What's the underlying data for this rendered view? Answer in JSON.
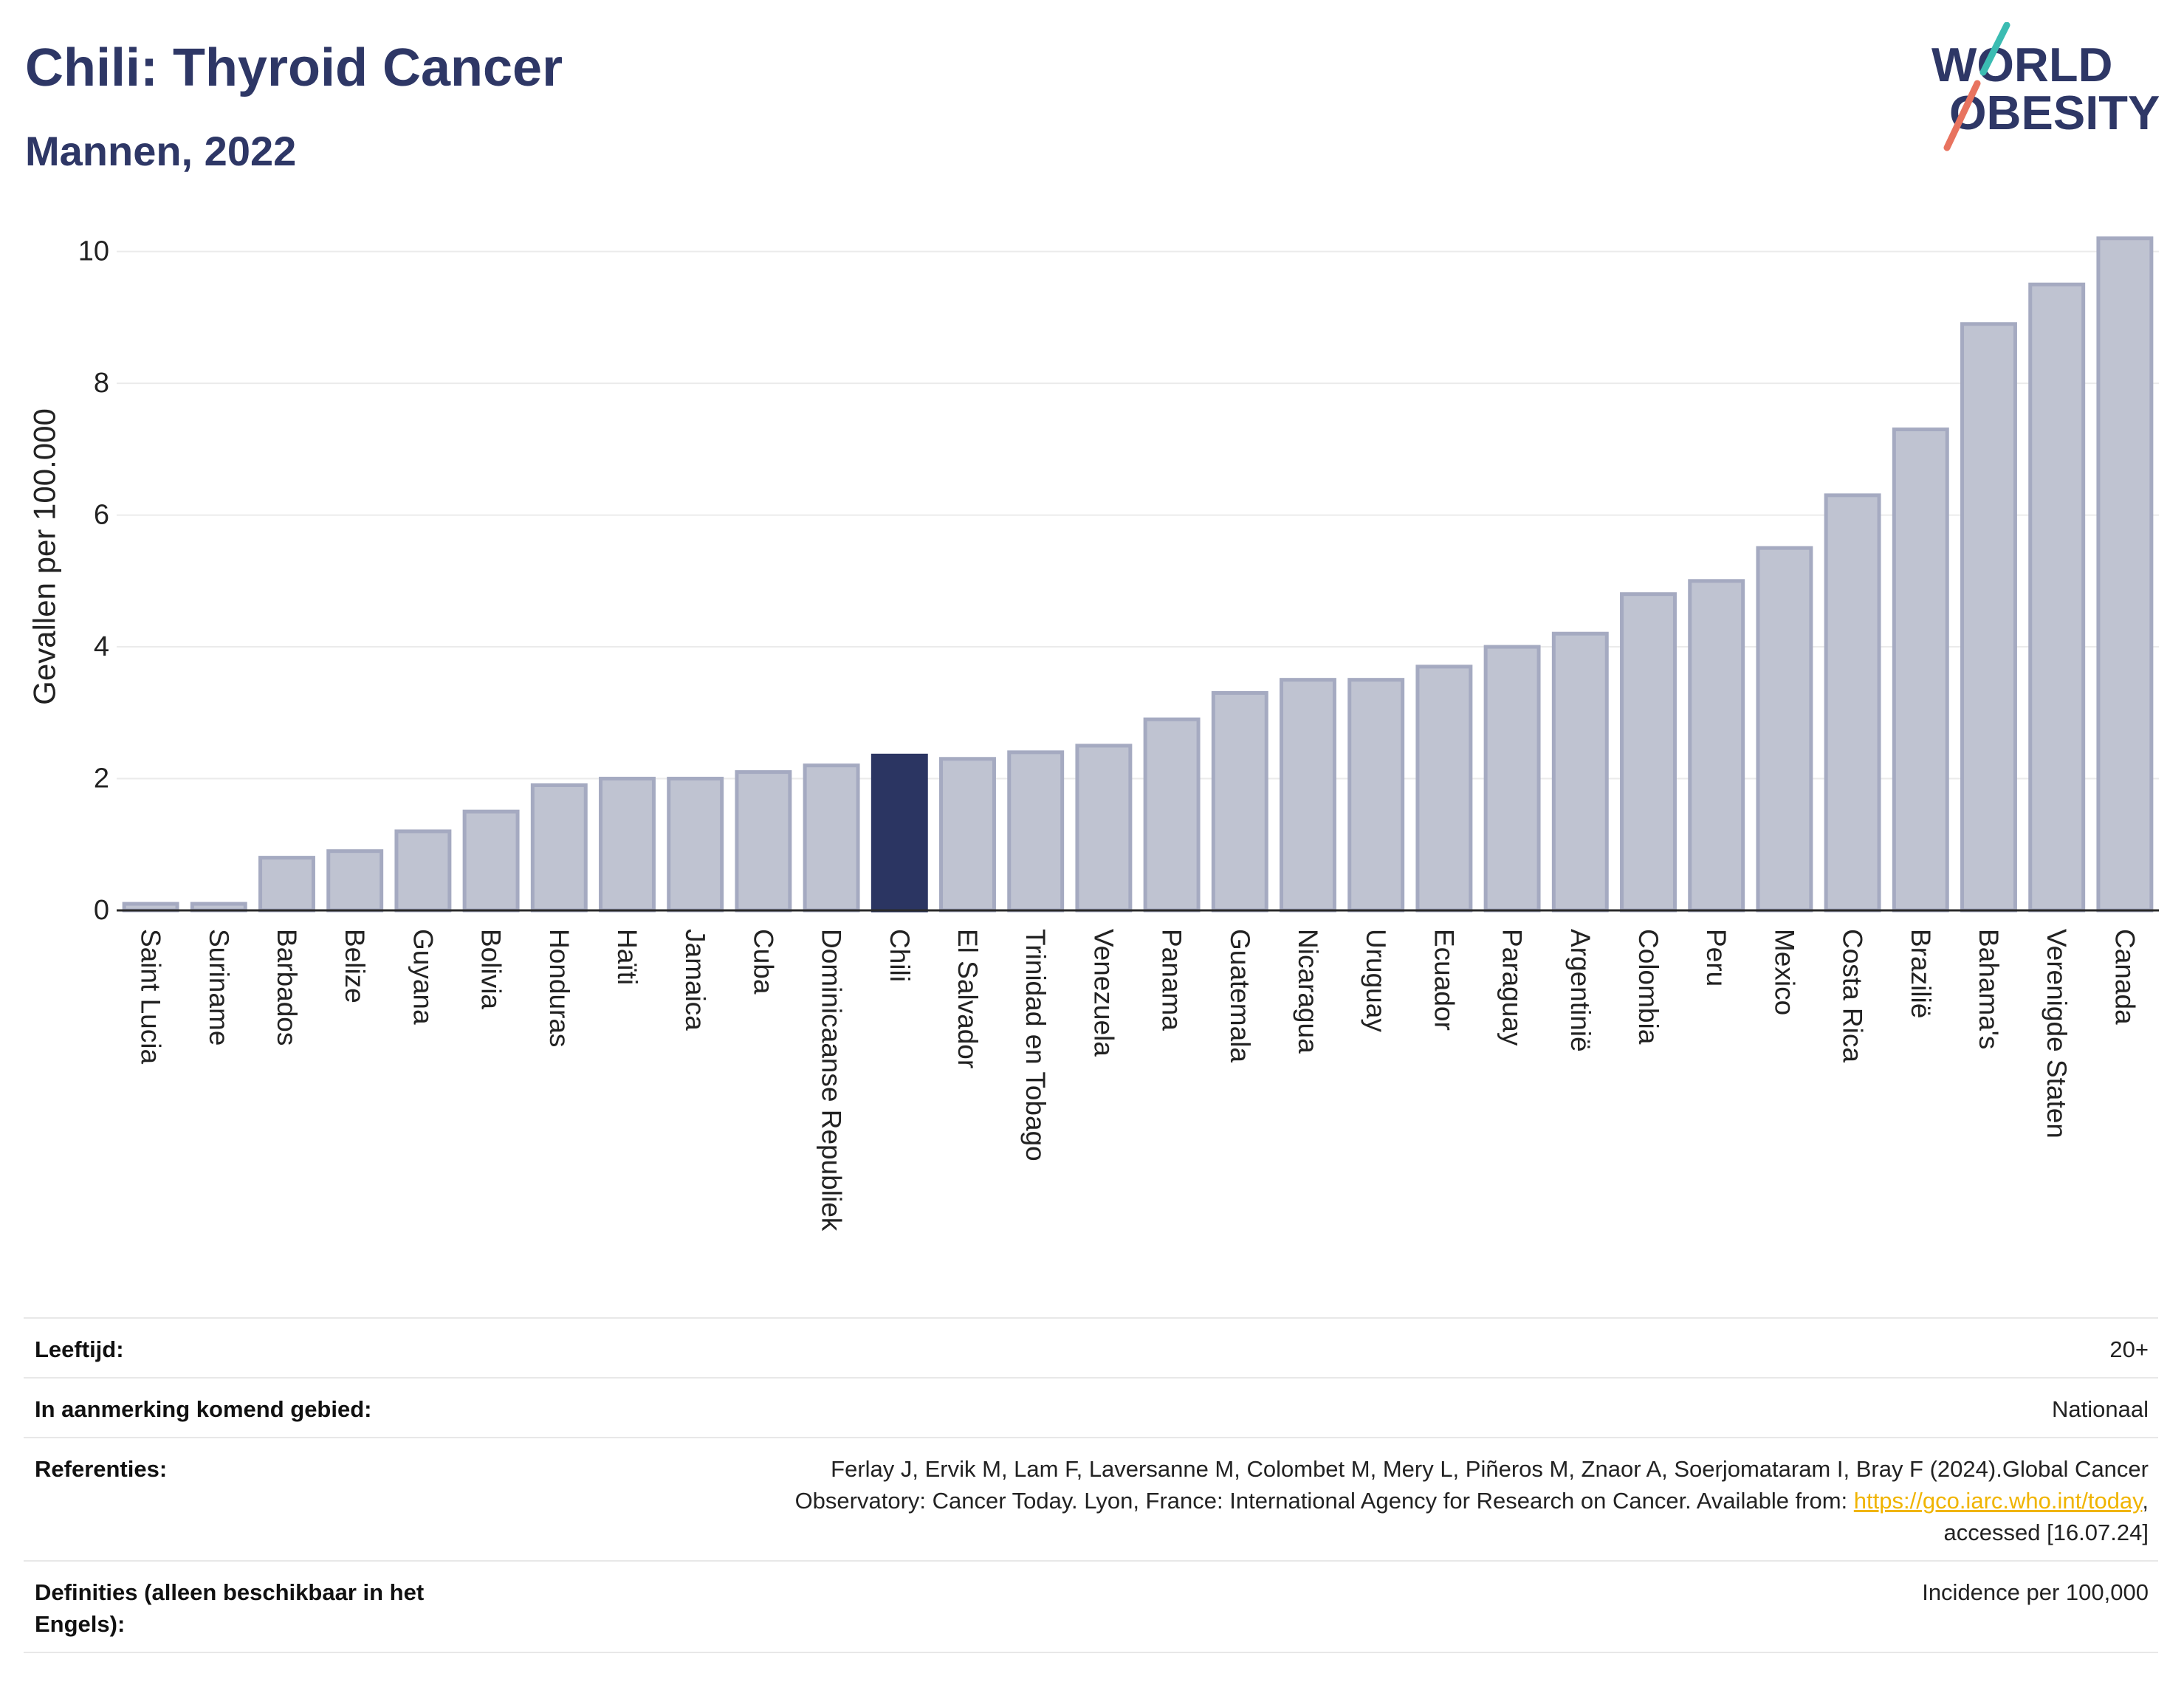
{
  "header": {
    "title": "Chili: Thyroid Cancer",
    "subtitle": "Mannen, 2022"
  },
  "logo": {
    "line1": "WORLD",
    "line2": "OBESITY",
    "colors": {
      "text": "#2e3766",
      "slash_top": "#3bbcb2",
      "slash_bottom": "#e8735f"
    }
  },
  "chart_data": {
    "type": "bar",
    "ylabel": "Gevallen per 100.000",
    "categories": [
      "Saint Lucia",
      "Suriname",
      "Barbados",
      "Belize",
      "Guyana",
      "Bolivia",
      "Honduras",
      "Haïti",
      "Jamaica",
      "Cuba",
      "Dominicaanse Republiek",
      "Chili",
      "El Salvador",
      "Trinidad en Tobago",
      "Venezuela",
      "Panama",
      "Guatemala",
      "Nicaragua",
      "Uruguay",
      "Ecuador",
      "Paraguay",
      "Argentinië",
      "Colombia",
      "Peru",
      "Mexico",
      "Costa Rica",
      "Brazilië",
      "Bahama's",
      "Verenigde Staten",
      "Canada"
    ],
    "values": [
      0.1,
      0.1,
      0.8,
      0.9,
      1.2,
      1.5,
      1.9,
      2.0,
      2.0,
      2.1,
      2.2,
      2.35,
      2.3,
      2.4,
      2.5,
      2.9,
      3.3,
      3.5,
      3.5,
      3.7,
      4.0,
      4.2,
      4.8,
      5.0,
      5.5,
      6.3,
      7.3,
      8.9,
      9.5,
      10.2
    ],
    "highlight_index": 11,
    "ylim": [
      0,
      10.5
    ],
    "yticks": [
      0,
      2,
      4,
      6,
      8,
      10
    ],
    "grid": true,
    "colors": {
      "bar": "#bfc3d1",
      "bar_outline": "#a5aac1",
      "highlight": "#2b3562"
    }
  },
  "details": {
    "rows": [
      {
        "label": "Leeftijd:",
        "value": "20+"
      },
      {
        "label": "In aanmerking komend gebied:",
        "value": "Nationaal"
      },
      {
        "label": "Referenties:",
        "value_before_link": "Ferlay J, Ervik M, Lam F, Laversanne M, Colombet M, Mery L, Piñeros M, Znaor A, Soerjomataram I, Bray F (2024).Global Cancer Observatory: Cancer Today. Lyon, France: International Agency for Research on Cancer. Available from: ",
        "link": "https://gco.iarc.who.int/today",
        "value_after_link": ", accessed [16.07.24]"
      },
      {
        "label": "Definities (alleen beschikbaar in het Engels):",
        "value": "Incidence per 100,000"
      }
    ],
    "link_color": "#f0b400"
  }
}
